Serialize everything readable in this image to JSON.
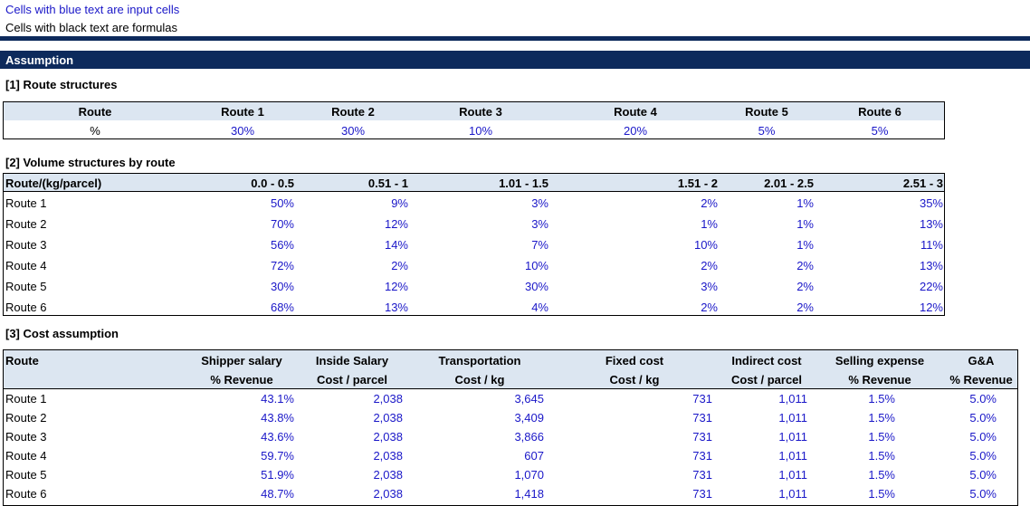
{
  "legend": {
    "input_note": "Cells with blue text are input cells",
    "formula_note": "Cells with black text are formulas"
  },
  "section_header": "Assumption",
  "route_structures": {
    "title": "[1] Route structures",
    "row_label_header": "Route",
    "routes": [
      "Route 1",
      "Route 2",
      "Route 3",
      "Route 4",
      "Route 5",
      "Route 6"
    ],
    "value_label": "%",
    "values": [
      "30%",
      "30%",
      "10%",
      "20%",
      "5%",
      "5%"
    ]
  },
  "volume_structures": {
    "title": "[2] Volume structures by route",
    "row_label_header": "Route/(kg/parcel)",
    "columns": [
      "0.0 - 0.5",
      "0.51 - 1",
      "1.01 - 1.5",
      "1.51 - 2",
      "2.01 - 2.5",
      "2.51 - 3"
    ],
    "rows": [
      {
        "route": "Route 1",
        "values": [
          "50%",
          "9%",
          "3%",
          "2%",
          "1%",
          "35%"
        ]
      },
      {
        "route": "Route 2",
        "values": [
          "70%",
          "12%",
          "3%",
          "1%",
          "1%",
          "13%"
        ]
      },
      {
        "route": "Route 3",
        "values": [
          "56%",
          "14%",
          "7%",
          "10%",
          "1%",
          "11%"
        ]
      },
      {
        "route": "Route 4",
        "values": [
          "72%",
          "2%",
          "10%",
          "2%",
          "2%",
          "13%"
        ]
      },
      {
        "route": "Route 5",
        "values": [
          "30%",
          "12%",
          "30%",
          "3%",
          "2%",
          "22%"
        ]
      },
      {
        "route": "Route 6",
        "values": [
          "68%",
          "13%",
          "4%",
          "2%",
          "2%",
          "12%"
        ]
      }
    ]
  },
  "cost_assumption": {
    "title": "[3] Cost assumption",
    "row_label_header": "Route",
    "headers": [
      {
        "line1": "Shipper salary",
        "line2": "% Revenue"
      },
      {
        "line1": "Inside Salary",
        "line2": "Cost / parcel"
      },
      {
        "line1": "Transportation",
        "line2": "Cost / kg"
      },
      {
        "line1": "Fixed cost",
        "line2": "Cost / kg"
      },
      {
        "line1": "Indirect cost",
        "line2": "Cost / parcel"
      },
      {
        "line1": "Selling expense",
        "line2": "% Revenue"
      },
      {
        "line1": "G&A",
        "line2": "% Revenue"
      }
    ],
    "rows": [
      {
        "route": "Route 1",
        "values": [
          "43.1%",
          "2,038",
          "3,645",
          "731",
          "1,011",
          "1.5%",
          "5.0%"
        ]
      },
      {
        "route": "Route 2",
        "values": [
          "43.8%",
          "2,038",
          "3,409",
          "731",
          "1,011",
          "1.5%",
          "5.0%"
        ]
      },
      {
        "route": "Route 3",
        "values": [
          "43.6%",
          "2,038",
          "3,866",
          "731",
          "1,011",
          "1.5%",
          "5.0%"
        ]
      },
      {
        "route": "Route 4",
        "values": [
          "59.7%",
          "2,038",
          "607",
          "731",
          "1,011",
          "1.5%",
          "5.0%"
        ]
      },
      {
        "route": "Route 5",
        "values": [
          "51.9%",
          "2,038",
          "1,070",
          "731",
          "1,011",
          "1.5%",
          "5.0%"
        ]
      },
      {
        "route": "Route 6",
        "values": [
          "48.7%",
          "2,038",
          "1,418",
          "731",
          "1,011",
          "1.5%",
          "5.0%"
        ]
      }
    ]
  },
  "colors": {
    "input_text": "#1a17c8",
    "header_band": "#0d2a5c",
    "header_fill": "#dce6f1"
  }
}
